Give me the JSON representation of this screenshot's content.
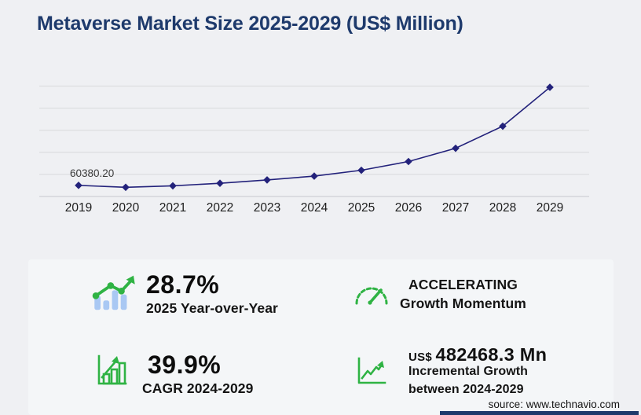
{
  "title": "Metaverse Market Size 2025-2029 (US$ Million)",
  "chart_data": {
    "type": "line",
    "title": "Metaverse Market Size 2025-2029 (US$ Million)",
    "categories": [
      "2019",
      "2020",
      "2021",
      "2022",
      "2023",
      "2024",
      "2025",
      "2026",
      "2027",
      "2028",
      "2029"
    ],
    "values": [
      60380.2,
      50000,
      58000,
      72000,
      90000,
      110703.5,
      142475.4,
      190000,
      262000,
      382000,
      593171.8
    ],
    "point_label": {
      "category": "2019",
      "text": "60380.20"
    },
    "xlabel": "",
    "ylabel": "",
    "ylim": [
      0,
      640000
    ],
    "gridline_step": 120000,
    "gridline_max": 600000,
    "grid": true,
    "legend": false,
    "line_color": "#23227B",
    "marker": "diamond"
  },
  "stats": {
    "yoy": {
      "value": "28.7%",
      "label": "2025 Year-over-Year"
    },
    "cagr": {
      "value": "39.9%",
      "label": "CAGR 2024-2029"
    },
    "momentum": {
      "line1": "ACCELERATING",
      "line2": "Growth Momentum"
    },
    "incremental": {
      "currency": "US$",
      "value": "482468.3 Mn",
      "line1": "Incremental Growth",
      "line2": "between 2024-2029"
    }
  },
  "source": "source: www.technavio.com",
  "colors": {
    "title_navy": "#1e3a6c",
    "line_navy": "#23227B",
    "icon_green": "#2fb344",
    "icon_light_blue": "#a9c8f3",
    "gridline": "#d8d9db"
  }
}
